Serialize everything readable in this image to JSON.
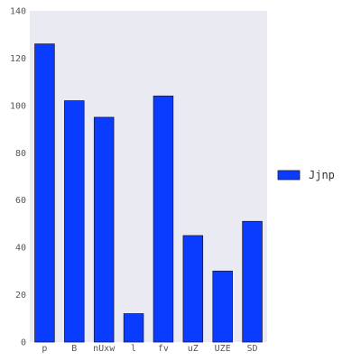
{
  "chart_data": {
    "type": "bar",
    "categories": [
      "p",
      "B",
      "nUxw",
      "l",
      "fv",
      "uZ",
      "UZE",
      "SD"
    ],
    "series": [
      {
        "name": "Jjnp",
        "values": [
          126,
          102,
          95,
          12,
          104,
          45,
          30,
          51
        ]
      }
    ],
    "ylim": [
      0,
      140
    ],
    "yticks": [
      0,
      20,
      40,
      60,
      80,
      100,
      120,
      140
    ],
    "grid": false,
    "legend_position": "right",
    "colors": {
      "bar_fill": "#0a3cff",
      "bar_edge": "#1a1a40",
      "plot_background": "#eaeaf2"
    }
  }
}
